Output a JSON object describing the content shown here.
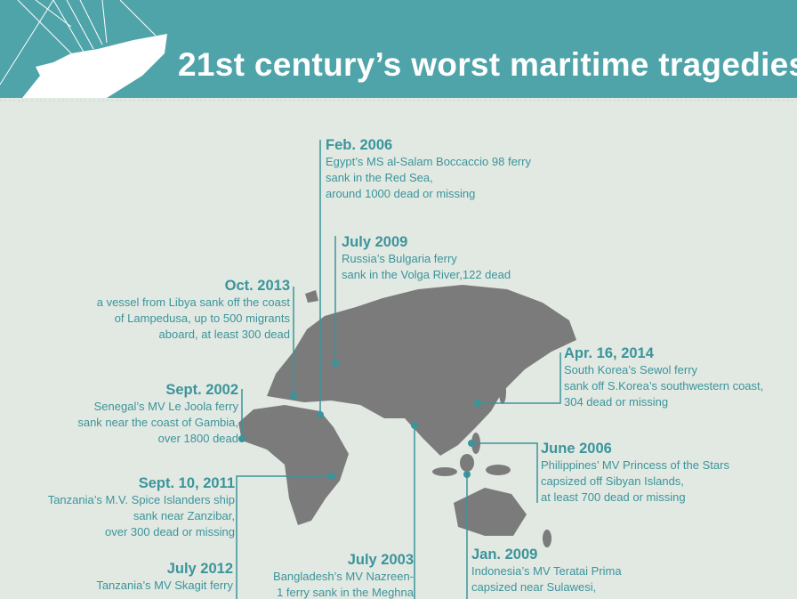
{
  "header": {
    "title": "21st century’s worst maritime tragedies"
  },
  "events": [
    {
      "date": "Feb. 2006",
      "lines": [
        "Egypt’s MS al-Salam Boccaccio 98 ferry",
        "sank in the Red Sea,",
        "around 1000 dead or missing"
      ]
    },
    {
      "date": "July 2009",
      "lines": [
        "Russia’s Bulgaria ferry",
        "sank in the Volga River,122 dead"
      ]
    },
    {
      "date": "Oct. 2013",
      "lines": [
        "a vessel from Libya sank off the coast",
        "of Lampedusa, up to 500 migrants",
        "aboard, at least 300 dead"
      ]
    },
    {
      "date": "Apr. 16, 2014",
      "lines": [
        "South Korea’s Sewol ferry",
        "sank off S.Korea’s southwestern coast,",
        "304 dead or missing"
      ]
    },
    {
      "date": "Sept. 2002",
      "lines": [
        "Senegal’s MV Le Joola ferry",
        "sank near the coast of Gambia,",
        "over 1800 dead"
      ]
    },
    {
      "date": "June 2006",
      "lines": [
        "Philippines’ MV Princess of the Stars",
        "capsized off Sibyan Islands,",
        "at least 700 dead or missing"
      ]
    },
    {
      "date": "Sept. 10, 2011",
      "lines": [
        "Tanzania’s M.V. Spice Islanders ship",
        "sank near Zanzibar,",
        "over 300 dead or missing"
      ]
    },
    {
      "date": "July 2012",
      "lines": [
        "Tanzania’s MV Skagit ferry"
      ]
    },
    {
      "date": "July 2003",
      "lines": [
        "Bangladesh’s MV Nazreen-",
        "1 ferry sank in the Meghna"
      ]
    },
    {
      "date": "Jan. 2009",
      "lines": [
        "Indonesia’s MV Teratai Prima",
        "capsized near Sulawesi,"
      ]
    }
  ]
}
